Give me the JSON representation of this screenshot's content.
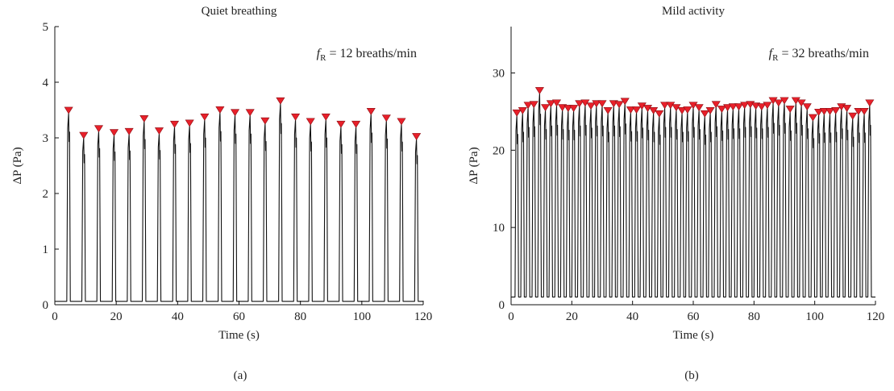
{
  "chart_data": [
    {
      "type": "line",
      "panel_label": "(a)",
      "title": "Quiet breathing",
      "xlabel": "Time (s)",
      "ylabel": "ΔP (Pa)",
      "xlim": [
        0,
        120
      ],
      "ylim": [
        0,
        5
      ],
      "xticks": [
        0,
        20,
        40,
        60,
        80,
        100,
        120
      ],
      "yticks": [
        0,
        1,
        2,
        3,
        4,
        5
      ],
      "annotation": {
        "symbol": "f",
        "subscript": "R",
        "text": " = 12 breaths/min"
      },
      "baseline": 0.06,
      "peak_marker_color": "#e8202a",
      "peaks": {
        "name": "",
        "x": [
          4.5,
          9.4,
          14.3,
          19.3,
          24.2,
          29.1,
          34.0,
          39.0,
          43.9,
          48.8,
          53.8,
          58.7,
          63.6,
          68.5,
          73.5,
          78.4,
          83.3,
          88.3,
          93.2,
          98.1,
          103.0,
          108.0,
          112.9,
          117.8
        ],
        "y": [
          3.45,
          3.0,
          3.12,
          3.05,
          3.07,
          3.3,
          3.08,
          3.2,
          3.22,
          3.33,
          3.46,
          3.41,
          3.41,
          3.26,
          3.62,
          3.33,
          3.25,
          3.33,
          3.2,
          3.2,
          3.43,
          3.31,
          3.25,
          2.98
        ]
      }
    },
    {
      "type": "line",
      "panel_label": "(b)",
      "title": "Mild activity",
      "xlabel": "Time (s)",
      "ylabel": "ΔP (Pa)",
      "xlim": [
        0,
        120
      ],
      "ylim": [
        0,
        36
      ],
      "xticks": [
        0,
        20,
        40,
        60,
        80,
        100,
        120
      ],
      "yticks": [
        0,
        10,
        20,
        30
      ],
      "annotation": {
        "symbol": "f",
        "subscript": "R",
        "text": " = 32 breaths/min"
      },
      "baseline": 1.0,
      "peak_marker_color": "#e8202a",
      "peaks": {
        "name": "",
        "x": [
          1.9,
          3.8,
          5.6,
          7.5,
          9.4,
          11.3,
          13.1,
          15.0,
          16.9,
          18.8,
          20.6,
          22.5,
          24.4,
          26.3,
          28.1,
          30.0,
          31.9,
          33.8,
          35.6,
          37.5,
          39.4,
          41.3,
          43.1,
          45.0,
          46.9,
          48.8,
          50.6,
          52.5,
          54.4,
          56.3,
          58.1,
          60.0,
          61.9,
          63.8,
          65.6,
          67.5,
          69.4,
          71.3,
          73.1,
          75.0,
          76.9,
          78.8,
          80.6,
          82.5,
          84.4,
          86.3,
          88.1,
          90.0,
          91.9,
          93.8,
          95.6,
          97.5,
          99.4,
          101.3,
          103.1,
          105.0,
          106.9,
          108.8,
          110.6,
          112.5,
          114.4,
          116.3,
          118.1
        ],
        "y": [
          24.5,
          24.8,
          25.5,
          25.6,
          27.4,
          25.2,
          25.7,
          25.8,
          25.2,
          25.1,
          25.1,
          25.7,
          25.8,
          25.4,
          25.7,
          25.7,
          24.8,
          25.7,
          25.6,
          26.0,
          24.9,
          24.9,
          25.4,
          25.1,
          24.8,
          24.4,
          25.5,
          25.5,
          25.2,
          24.8,
          24.9,
          25.5,
          25.2,
          24.4,
          24.8,
          25.6,
          25.0,
          25.2,
          25.3,
          25.3,
          25.5,
          25.6,
          25.4,
          25.3,
          25.5,
          26.1,
          25.8,
          26.1,
          25.0,
          26.1,
          25.8,
          25.3,
          23.9,
          24.6,
          24.7,
          24.7,
          24.8,
          25.3,
          25.1,
          24.1,
          24.7,
          24.7,
          25.8
        ]
      }
    }
  ]
}
